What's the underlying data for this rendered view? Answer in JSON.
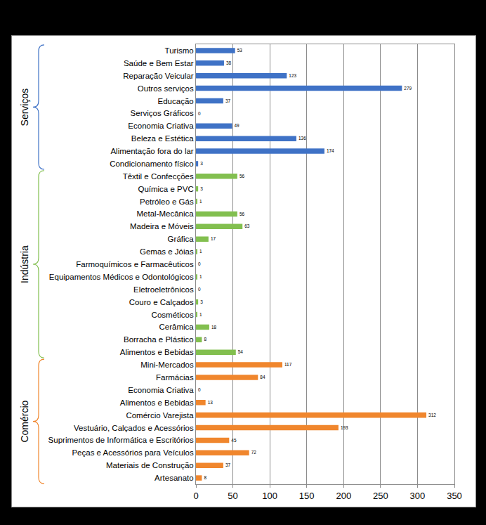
{
  "chart_data": {
    "type": "bar",
    "orientation": "horizontal",
    "categories": [
      "Turismo",
      "Saúde e Bem Estar",
      "Reparação Veicular",
      "Outros serviços",
      "Educação",
      "Serviços Gráficos",
      "Economia Criativa",
      "Beleza e Estética",
      "Alimentação fora do lar",
      "Condicionamento físico",
      "Têxtil e Confecções",
      "Química e PVC",
      "Petróleo e Gás",
      "Metal-Mecânica",
      "Madeira e Móveis",
      "Gráfica",
      "Gemas e Jóias",
      "Farmoquímicos e Farmacêuticos",
      "Equipamentos Médicos e Odontológicos",
      "Eletroeletrônicos",
      "Couro e Calçados",
      "Cosméticos",
      "Cerâmica",
      "Borracha e Plástico",
      "Alimentos e Bebidas",
      "Mini-Mercados",
      "Farmácias",
      "Economia Criativa",
      "Alimentos e Bebidas",
      "Comércio Varejista",
      "Vestuário, Calçados e Acessórios",
      "Suprimentos de Informática e Escritórios",
      "Peças e Acessórios para Veículos",
      "Materiais de Construção",
      "Artesanato"
    ],
    "series": [
      {
        "name": "Serviços",
        "color": "#3f72c6",
        "values": [
          53,
          38,
          123,
          279,
          37,
          0,
          49,
          136,
          174,
          3,
          null,
          null,
          null,
          null,
          null,
          null,
          null,
          null,
          null,
          null,
          null,
          null,
          null,
          null,
          null,
          null,
          null,
          null,
          null,
          null,
          null,
          null,
          null,
          null,
          null
        ]
      },
      {
        "name": "Indústria",
        "color": "#82bf4f",
        "values": [
          null,
          null,
          null,
          null,
          null,
          null,
          null,
          null,
          null,
          null,
          56,
          3,
          1,
          56,
          63,
          17,
          1,
          0,
          1,
          0,
          3,
          1,
          18,
          8,
          54,
          null,
          null,
          null,
          null,
          null,
          null,
          null,
          null,
          null,
          null
        ]
      },
      {
        "name": "Comércio",
        "color": "#f0862d",
        "values": [
          null,
          null,
          null,
          null,
          null,
          null,
          null,
          null,
          null,
          null,
          null,
          null,
          null,
          null,
          null,
          null,
          null,
          null,
          null,
          null,
          null,
          null,
          null,
          null,
          null,
          117,
          84,
          0,
          13,
          312,
          193,
          45,
          72,
          37,
          8
        ]
      }
    ],
    "xlim": [
      0,
      350
    ],
    "xticks": [
      0,
      50,
      100,
      150,
      200,
      250,
      300,
      350
    ],
    "grid": true,
    "data_labels": true
  }
}
